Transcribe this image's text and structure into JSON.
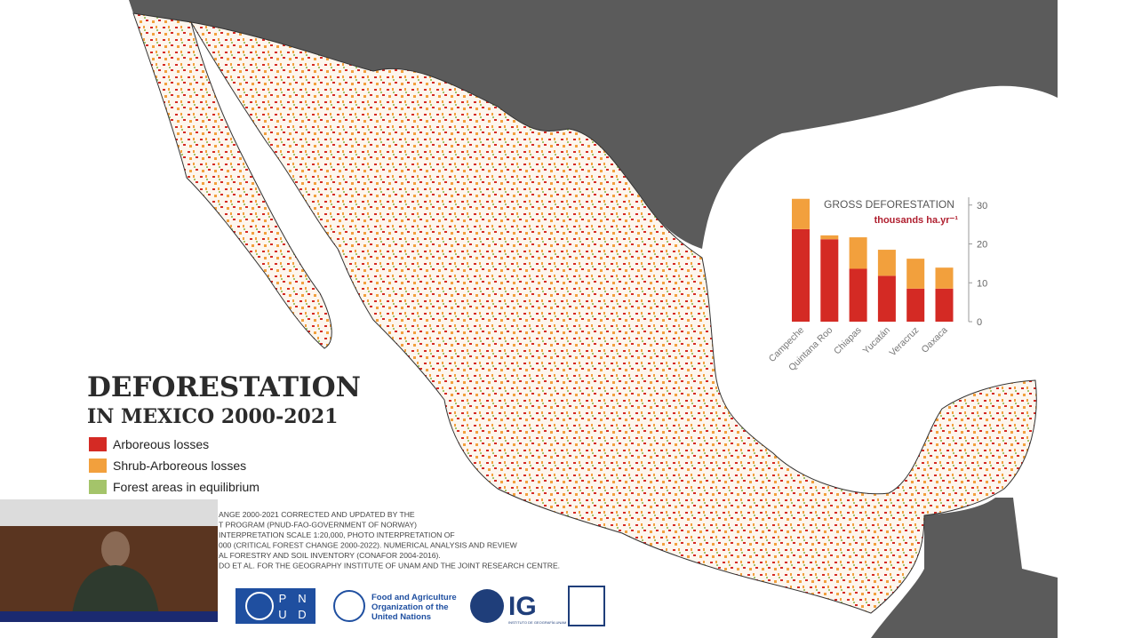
{
  "header": {
    "title": "DEFORESTATION",
    "subtitle": "IN MEXICO 2000-2021"
  },
  "legend": [
    {
      "label": "Arboreous losses",
      "color": "#d42a24"
    },
    {
      "label": "Shrub-Arboreous losses",
      "color": "#f2a03d"
    },
    {
      "label": "Forest areas in equilibrium",
      "color": "#a4c46a"
    }
  ],
  "sources": [
    "ANGE 2000-2021 CORRECTED AND UPDATED BY THE",
    "T PROGRAM (PNUD-FAO-GOVERNMENT OF NORWAY)",
    "INTERPRETATION SCALE 1:20,000, PHOTO INTERPRETATION OF",
    "000 (CRITICAL FOREST CHANGE 2000-2022). NUMERICAL ANALYSIS AND REVIEW",
    "AL FORESTRY AND SOIL INVENTORY (CONAFOR 2004-2016).",
    "DO ET AL. FOR THE GEOGRAPHY INSTITUTE OF UNAM AND THE JOINT RESEARCH CENTRE."
  ],
  "logos": {
    "pnud": [
      "P",
      "N",
      "U",
      "D"
    ],
    "fao": [
      "Food and Agriculture",
      "Organization of the",
      "United Nations"
    ],
    "ig": "IG",
    "ig_sub": "INSTITUTO DE GEOGRAFÍA UNAM"
  },
  "chart_data": {
    "type": "bar",
    "stacked": true,
    "title": "GROSS DEFORESTATION",
    "subtitle": "thousands ha.yr⁻¹",
    "categories": [
      "Campeche",
      "Quintana Roo",
      "Chiapas",
      "Yucatán",
      "Veracruz",
      "Oaxaca"
    ],
    "series": [
      {
        "color": "#d42a24",
        "values": [
          23.8,
          21.2,
          13.6,
          11.8,
          8.5,
          8.5
        ]
      },
      {
        "color": "#f2a03d",
        "values": [
          7.8,
          1.0,
          8.1,
          6.7,
          7.7,
          5.4
        ]
      }
    ],
    "ylim": [
      0,
      32
    ],
    "yticks": [
      0,
      10,
      20,
      30
    ],
    "axis_side": "right"
  }
}
